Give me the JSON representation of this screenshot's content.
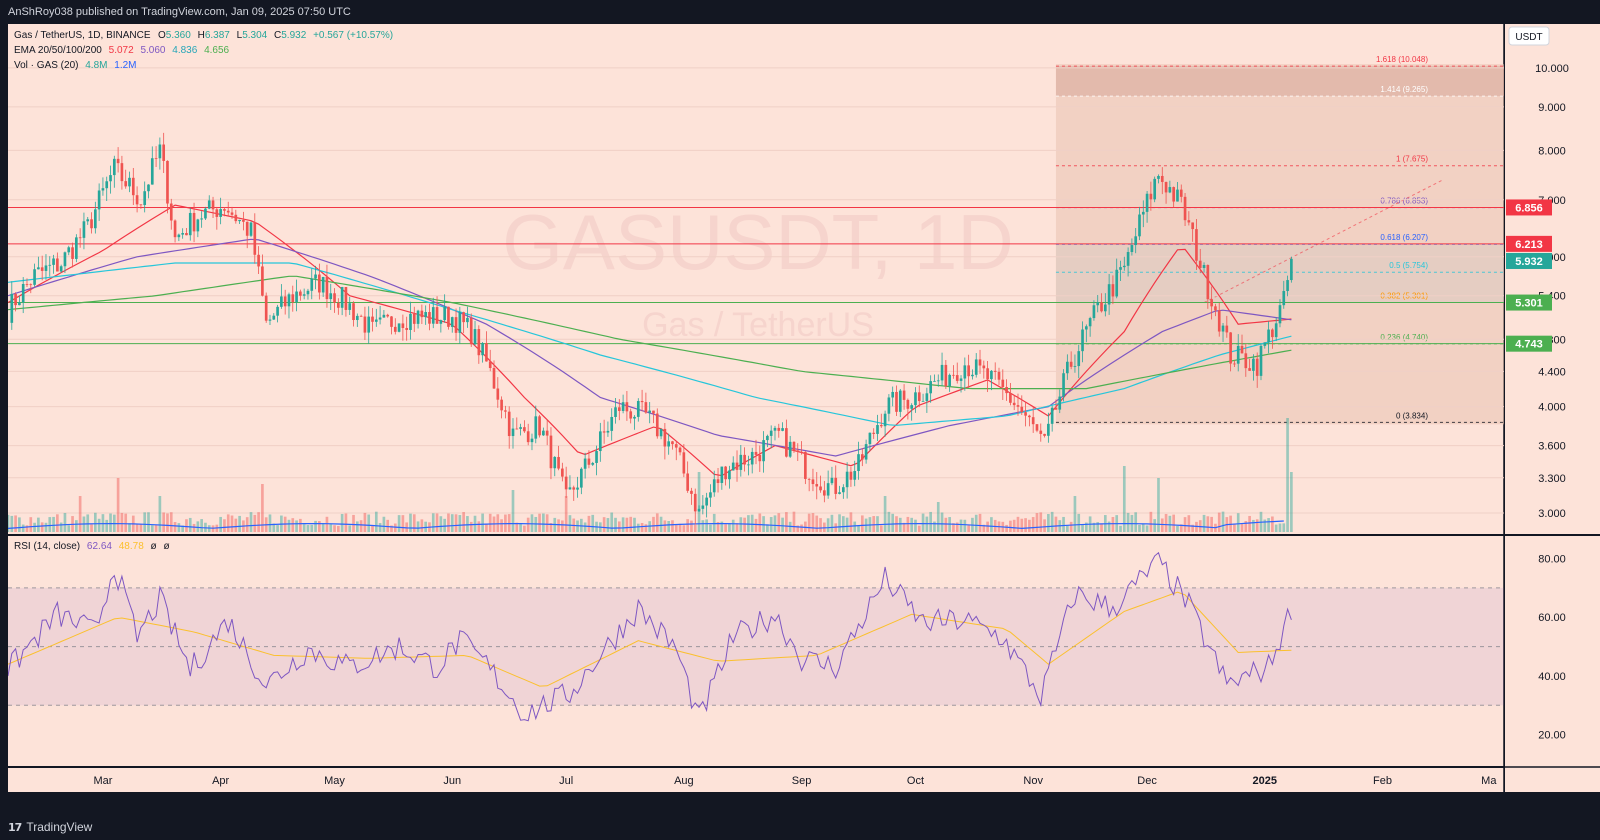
{
  "header": {
    "publish_line": "AnShRoy038 published on TradingView.com, Jan 09, 2025 07:50 UTC"
  },
  "footer": {
    "brand": "TradingView",
    "brand_icon": "tradingview-logo-icon"
  },
  "legend": {
    "symbol": "Gas / TetherUS, 1D, BINANCE",
    "ohlc": {
      "o_label": "O",
      "o": "5.360",
      "h_label": "H",
      "h": "6.387",
      "l_label": "L",
      "l": "5.304",
      "c_label": "C",
      "c": "5.932",
      "change": "+0.567 (+10.57%)"
    },
    "ema_label": "EMA 20/50/100/200",
    "ema_values": [
      "5.072",
      "5.060",
      "4.836",
      "4.656"
    ],
    "vol_label": "Vol · GAS (20)",
    "vol_values": [
      "4.8M",
      "1.2M"
    ],
    "rsi_label": "RSI (14, close)",
    "rsi_values": [
      "62.64",
      "48.78",
      "ø",
      "ø"
    ]
  },
  "watermark": {
    "ticker": "GASUSDT, 1D",
    "name": "Gas / TetherUS"
  },
  "currency_badge": "USDT",
  "colors": {
    "background": "#fde3d9",
    "up": "#26a69a",
    "down": "#ef5350",
    "ema20": "#f23645",
    "ema50": "#7e57c2",
    "ema100": "#26c6da",
    "ema200": "#4caf50",
    "vol_ma": "#2962ff",
    "rsi": "#7e57c2",
    "rsi_ma": "#fbc02d"
  },
  "chart_data": {
    "type": "candlestick",
    "title": "Gas / TetherUS, 1D, BINANCE",
    "price_axis": {
      "scale": "log",
      "ylim": [
        2.85,
        11.2
      ],
      "ticks": [
        "10.000",
        "9.000",
        "8.000",
        "7.000",
        "6.000",
        "5.400",
        "4.800",
        "4.400",
        "4.000",
        "3.600",
        "3.300",
        "3.000"
      ]
    },
    "time_axis": {
      "range": [
        "2024-02-05",
        "2025-03-05"
      ],
      "labels": [
        {
          "text": "Mar",
          "date": "2024-03-01"
        },
        {
          "text": "Apr",
          "date": "2024-04-01"
        },
        {
          "text": "May",
          "date": "2024-05-01"
        },
        {
          "text": "Jun",
          "date": "2024-06-01"
        },
        {
          "text": "Jul",
          "date": "2024-07-01"
        },
        {
          "text": "Aug",
          "date": "2024-08-01"
        },
        {
          "text": "Sep",
          "date": "2024-09-01"
        },
        {
          "text": "Oct",
          "date": "2024-10-01"
        },
        {
          "text": "Nov",
          "date": "2024-11-01"
        },
        {
          "text": "Dec",
          "date": "2024-12-01"
        },
        {
          "text": "2025",
          "date": "2025-01-01"
        },
        {
          "text": "Feb",
          "date": "2025-02-01"
        },
        {
          "text": "Ma",
          "date": "2025-03-01"
        }
      ]
    },
    "price_series": [
      [
        "2024-02-05",
        5.2
      ],
      [
        "2024-02-12",
        5.7
      ],
      [
        "2024-02-19",
        5.9
      ],
      [
        "2024-02-26",
        6.5
      ],
      [
        "2024-03-04",
        7.6
      ],
      [
        "2024-03-11",
        7.0
      ],
      [
        "2024-03-16",
        8.0
      ],
      [
        "2024-03-20",
        6.3
      ],
      [
        "2024-03-26",
        6.7
      ],
      [
        "2024-04-02",
        6.9
      ],
      [
        "2024-04-09",
        6.4
      ],
      [
        "2024-04-13",
        5.0
      ],
      [
        "2024-04-20",
        5.4
      ],
      [
        "2024-04-27",
        5.6
      ],
      [
        "2024-05-04",
        5.3
      ],
      [
        "2024-05-11",
        4.9
      ],
      [
        "2024-05-18",
        5.1
      ],
      [
        "2024-05-25",
        5.1
      ],
      [
        "2024-06-01",
        5.1
      ],
      [
        "2024-06-06",
        4.9
      ],
      [
        "2024-06-10",
        4.5
      ],
      [
        "2024-06-17",
        3.7
      ],
      [
        "2024-06-24",
        3.8
      ],
      [
        "2024-07-01",
        3.1
      ],
      [
        "2024-07-08",
        3.5
      ],
      [
        "2024-07-15",
        4.0
      ],
      [
        "2024-07-22",
        3.9
      ],
      [
        "2024-07-29",
        3.6
      ],
      [
        "2024-08-05",
        3.0
      ],
      [
        "2024-08-12",
        3.4
      ],
      [
        "2024-08-19",
        3.5
      ],
      [
        "2024-08-26",
        3.7
      ],
      [
        "2024-09-02",
        3.4
      ],
      [
        "2024-09-09",
        3.2
      ],
      [
        "2024-09-16",
        3.4
      ],
      [
        "2024-09-23",
        4.0
      ],
      [
        "2024-09-30",
        4.1
      ],
      [
        "2024-10-07",
        4.3
      ],
      [
        "2024-10-14",
        4.5
      ],
      [
        "2024-10-21",
        4.3
      ],
      [
        "2024-10-28",
        4.0
      ],
      [
        "2024-11-04",
        3.6
      ],
      [
        "2024-11-11",
        4.5
      ],
      [
        "2024-11-18",
        5.2
      ],
      [
        "2024-11-25",
        5.8
      ],
      [
        "2024-12-04",
        7.5
      ],
      [
        "2024-12-10",
        6.9
      ],
      [
        "2024-12-16",
        5.7
      ],
      [
        "2024-12-23",
        4.6
      ],
      [
        "2024-12-30",
        4.5
      ],
      [
        "2025-01-06",
        5.3
      ],
      [
        "2025-01-08",
        5.93
      ]
    ],
    "ema_series": [
      {
        "name": "EMA 20",
        "color": "#f23645",
        "values": [
          [
            "2024-02-05",
            5.3
          ],
          [
            "2024-03-01",
            6.1
          ],
          [
            "2024-03-20",
            6.9
          ],
          [
            "2024-04-10",
            6.6
          ],
          [
            "2024-05-05",
            5.4
          ],
          [
            "2024-06-01",
            5.0
          ],
          [
            "2024-06-20",
            4.1
          ],
          [
            "2024-07-05",
            3.5
          ],
          [
            "2024-07-25",
            3.8
          ],
          [
            "2024-08-10",
            3.3
          ],
          [
            "2024-08-25",
            3.6
          ],
          [
            "2024-09-15",
            3.4
          ],
          [
            "2024-10-01",
            4.0
          ],
          [
            "2024-10-20",
            4.3
          ],
          [
            "2024-11-05",
            3.9
          ],
          [
            "2024-11-25",
            4.9
          ],
          [
            "2024-12-10",
            6.2
          ],
          [
            "2024-12-25",
            5.0
          ],
          [
            "2025-01-08",
            5.07
          ]
        ]
      },
      {
        "name": "EMA 50",
        "color": "#7e57c2",
        "values": [
          [
            "2024-02-05",
            5.4
          ],
          [
            "2024-03-10",
            6.0
          ],
          [
            "2024-04-10",
            6.3
          ],
          [
            "2024-05-10",
            5.7
          ],
          [
            "2024-06-10",
            5.0
          ],
          [
            "2024-07-10",
            4.1
          ],
          [
            "2024-08-10",
            3.7
          ],
          [
            "2024-09-10",
            3.5
          ],
          [
            "2024-10-10",
            3.8
          ],
          [
            "2024-11-05",
            4.0
          ],
          [
            "2024-12-05",
            4.9
          ],
          [
            "2024-12-20",
            5.2
          ],
          [
            "2025-01-08",
            5.06
          ]
        ]
      },
      {
        "name": "EMA 100",
        "color": "#26c6da",
        "values": [
          [
            "2024-02-05",
            5.6
          ],
          [
            "2024-03-20",
            5.9
          ],
          [
            "2024-04-20",
            5.9
          ],
          [
            "2024-06-01",
            5.2
          ],
          [
            "2024-07-10",
            4.6
          ],
          [
            "2024-08-20",
            4.1
          ],
          [
            "2024-09-25",
            3.8
          ],
          [
            "2024-10-25",
            3.9
          ],
          [
            "2024-11-25",
            4.2
          ],
          [
            "2024-12-20",
            4.6
          ],
          [
            "2025-01-08",
            4.84
          ]
        ]
      },
      {
        "name": "EMA 200",
        "color": "#4caf50",
        "values": [
          [
            "2024-02-05",
            5.2
          ],
          [
            "2024-03-15",
            5.4
          ],
          [
            "2024-04-20",
            5.7
          ],
          [
            "2024-06-01",
            5.3
          ],
          [
            "2024-07-15",
            4.8
          ],
          [
            "2024-09-01",
            4.4
          ],
          [
            "2024-10-15",
            4.2
          ],
          [
            "2024-11-15",
            4.2
          ],
          [
            "2024-12-20",
            4.5
          ],
          [
            "2025-01-08",
            4.66
          ]
        ]
      }
    ],
    "horizontal_levels": [
      {
        "price": 6.856,
        "label": "6.856",
        "color": "#f23645"
      },
      {
        "price": 6.213,
        "label": "6.213",
        "color": "#f23645"
      },
      {
        "price": 5.932,
        "label": "5.932",
        "color": "#26a69a"
      },
      {
        "price": 5.301,
        "label": "5.301",
        "color": "#4caf50"
      },
      {
        "price": 4.743,
        "label": "4.743",
        "color": "#4caf50"
      }
    ],
    "fibonacci": {
      "start_date": "2024-11-07",
      "levels": [
        {
          "ratio": "1.618",
          "price": 10.048,
          "label": "1.618 (10.048)",
          "color": "#f23645"
        },
        {
          "ratio": "1.414",
          "price": 9.265,
          "label": "1.414 (9.265)",
          "color": "#ffffff"
        },
        {
          "ratio": "1",
          "price": 7.675,
          "label": "1 (7.675)",
          "color": "#f23645"
        },
        {
          "ratio": "0.786",
          "price": 6.853,
          "label": "0.786 (6.853)",
          "color": "#7e57c2"
        },
        {
          "ratio": "0.618",
          "price": 6.207,
          "label": "0.618 (6.207)",
          "color": "#2962ff"
        },
        {
          "ratio": "0.5",
          "price": 5.754,
          "label": "0.5 (5.754)",
          "color": "#26c6da"
        },
        {
          "ratio": "0.382",
          "price": 5.301,
          "label": "0.382 (5.301)",
          "color": "#ff9800"
        },
        {
          "ratio": "0.236",
          "price": 4.74,
          "label": "0.236 (4.740)",
          "color": "#4caf50"
        },
        {
          "ratio": "0",
          "price": 3.834,
          "label": "0 (3.834)",
          "color": "#131722"
        }
      ]
    },
    "volume_spikes": [
      [
        "2024-02-24",
        0.3
      ],
      [
        "2024-03-05",
        0.45
      ],
      [
        "2024-03-16",
        0.3
      ],
      [
        "2024-04-12",
        0.4
      ],
      [
        "2024-06-17",
        0.35
      ],
      [
        "2024-07-01",
        0.3
      ],
      [
        "2024-08-05",
        0.5
      ],
      [
        "2024-09-23",
        0.3
      ],
      [
        "2024-10-07",
        0.25
      ],
      [
        "2024-11-12",
        0.3
      ],
      [
        "2024-11-25",
        0.55
      ],
      [
        "2024-12-04",
        0.45
      ],
      [
        "2025-01-07",
        0.95
      ],
      [
        "2025-01-08",
        0.5
      ]
    ],
    "rsi": {
      "label": "RSI (14, close)",
      "ticks": [
        "80.00",
        "60.00",
        "40.00",
        "20.00"
      ],
      "ylim": [
        10,
        87
      ],
      "band": [
        30,
        70
      ],
      "mid": 50,
      "series": [
        [
          "2024-02-05",
          42
        ],
        [
          "2024-02-18",
          61
        ],
        [
          "2024-02-28",
          55
        ],
        [
          "2024-03-04",
          78
        ],
        [
          "2024-03-10",
          53
        ],
        [
          "2024-03-16",
          66
        ],
        [
          "2024-03-24",
          42
        ],
        [
          "2024-04-03",
          59
        ],
        [
          "2024-04-13",
          37
        ],
        [
          "2024-04-24",
          49
        ],
        [
          "2024-05-05",
          43
        ],
        [
          "2024-05-18",
          50
        ],
        [
          "2024-05-28",
          43
        ],
        [
          "2024-06-03",
          52
        ],
        [
          "2024-06-10",
          44
        ],
        [
          "2024-06-20",
          27
        ],
        [
          "2024-07-02",
          34
        ],
        [
          "2024-07-08",
          44
        ],
        [
          "2024-07-20",
          63
        ],
        [
          "2024-07-30",
          49
        ],
        [
          "2024-08-05",
          25
        ],
        [
          "2024-08-14",
          53
        ],
        [
          "2024-08-25",
          61
        ],
        [
          "2024-09-01",
          46
        ],
        [
          "2024-09-10",
          43
        ],
        [
          "2024-09-23",
          73
        ],
        [
          "2024-10-03",
          58
        ],
        [
          "2024-10-14",
          59
        ],
        [
          "2024-10-24",
          53
        ],
        [
          "2024-11-03",
          33
        ],
        [
          "2024-11-12",
          68
        ],
        [
          "2024-11-22",
          63
        ],
        [
          "2024-12-04",
          79
        ],
        [
          "2024-12-12",
          64
        ],
        [
          "2024-12-22",
          37
        ],
        [
          "2025-01-02",
          43
        ],
        [
          "2025-01-08",
          62.64
        ]
      ],
      "ma_series": [
        [
          "2024-02-05",
          44
        ],
        [
          "2024-03-05",
          60
        ],
        [
          "2024-03-25",
          55
        ],
        [
          "2024-04-15",
          47
        ],
        [
          "2024-05-10",
          46
        ],
        [
          "2024-06-05",
          47
        ],
        [
          "2024-06-25",
          36
        ],
        [
          "2024-07-20",
          52
        ],
        [
          "2024-08-10",
          45
        ],
        [
          "2024-09-05",
          47
        ],
        [
          "2024-09-30",
          61
        ],
        [
          "2024-10-25",
          56
        ],
        [
          "2024-11-05",
          44
        ],
        [
          "2024-11-25",
          62
        ],
        [
          "2024-12-10",
          69
        ],
        [
          "2024-12-25",
          48
        ],
        [
          "2025-01-08",
          48.78
        ]
      ]
    }
  }
}
